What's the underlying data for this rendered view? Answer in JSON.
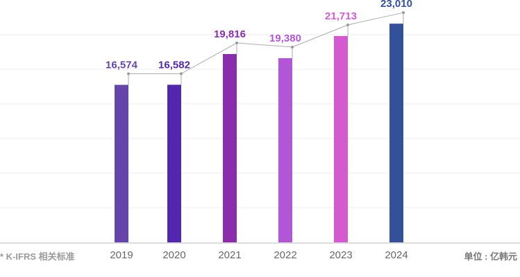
{
  "chart_data": {
    "type": "bar",
    "categories": [
      "2019",
      "2020",
      "2021",
      "2022",
      "2023",
      "2024"
    ],
    "values": [
      16574,
      16582,
      19816,
      19380,
      21713,
      23010
    ],
    "value_labels": [
      "16,574",
      "16,582",
      "19,816",
      "19,380",
      "21,713",
      "23,010"
    ],
    "colors": [
      "#6645ab",
      "#5227ad",
      "#8a2dad",
      "#b056d6",
      "#d45bcf",
      "#33509b"
    ],
    "ylim": [
      0,
      25500
    ],
    "grid": true,
    "footnote": "* K-IFRS 相关标准",
    "unit_label": "单位 : 亿韩元",
    "trend_line": true
  }
}
